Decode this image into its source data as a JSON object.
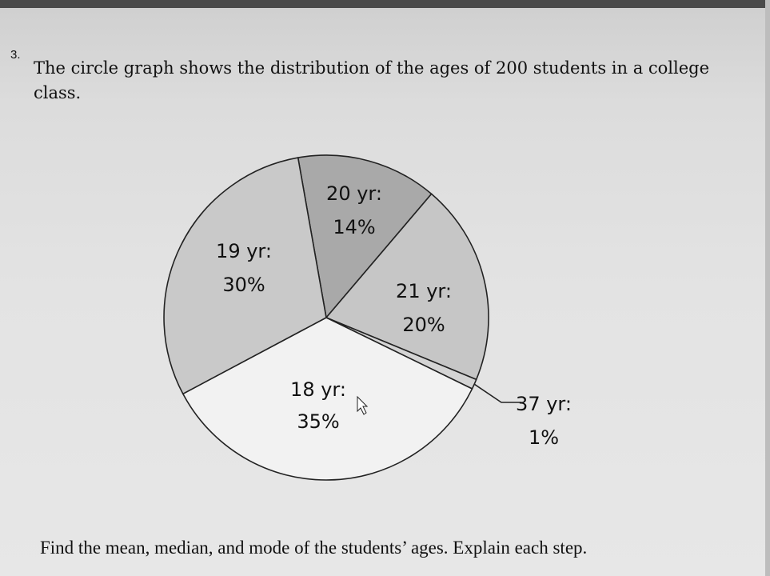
{
  "problem": {
    "number": "3.",
    "prompt": "The circle graph shows the distribution of the ages of 200 students in a college class.",
    "question": "Find the mean, median, and mode of the students’ ages. Explain each step."
  },
  "chart_data": {
    "type": "pie",
    "title": "",
    "slices": [
      {
        "label": "20 yr:",
        "value_label": "14%",
        "value": 14,
        "color": "#a9a9a9"
      },
      {
        "label": "21 yr:",
        "value_label": "20%",
        "value": 20,
        "color": "#c6c6c6"
      },
      {
        "label": "37 yr:",
        "value_label": "1%",
        "value": 1,
        "color": "#d4d4d4"
      },
      {
        "label": "18 yr:",
        "value_label": "35%",
        "value": 35,
        "color": "#f2f2f2"
      },
      {
        "label": "19 yr:",
        "value_label": "30%",
        "value": 30,
        "color": "#c9c9c9"
      }
    ]
  }
}
